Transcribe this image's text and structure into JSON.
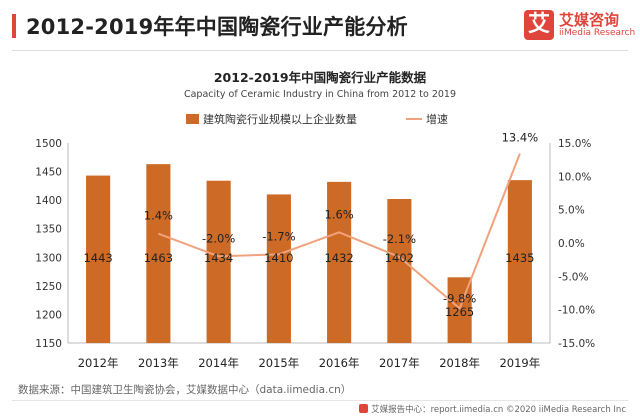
{
  "header": {
    "title": "2012-2019年年中国陶瓷行业产能分析",
    "logo_mark": "艾",
    "logo_cn": "艾媒咨询",
    "logo_en": "iiMedia Research"
  },
  "source_text": "数据来源：中国建筑卫生陶瓷协会，艾媒数据中心（data.iimedia.cn）",
  "footer_text": "艾媒报告中心：report.iimedia.cn ©2020  iiMedia Research  Inc",
  "colors": {
    "bar": "#cd6a26",
    "line": "#f0a27c",
    "accent": "#e0453c"
  },
  "chart_data": {
    "type": "bar",
    "title": "2012-2019年中国陶瓷行业产能数据",
    "subtitle": "Capacity of Ceramic Industry in China from 2012 to 2019",
    "categories": [
      "2012年",
      "2013年",
      "2014年",
      "2015年",
      "2016年",
      "2017年",
      "2018年",
      "2019年"
    ],
    "series": [
      {
        "name": "建筑陶瓷行业规模以上企业数量",
        "type": "bar",
        "axis": "left",
        "values": [
          1443,
          1463,
          1434,
          1410,
          1432,
          1402,
          1265,
          1435
        ]
      },
      {
        "name": "增速",
        "type": "line",
        "axis": "right",
        "values": [
          null,
          1.4,
          -2.0,
          -1.7,
          1.6,
          -2.1,
          -9.8,
          13.4
        ],
        "labels": [
          "",
          "1.4%",
          "-2.0%",
          "-1.7%",
          "1.6%",
          "-2.1%",
          "-9.8%",
          "13.4%"
        ]
      }
    ],
    "ylim": [
      1150,
      1500
    ],
    "yticks": [
      1150,
      1200,
      1250,
      1300,
      1350,
      1400,
      1450,
      1500
    ],
    "y2lim": [
      -15,
      15
    ],
    "y2ticks": [
      "15.0%",
      "10.0%",
      "5.0%",
      "0.0%",
      "-5.0%",
      "-10.0%",
      "-15.0%"
    ],
    "legend": "top-center",
    "grid": false
  }
}
